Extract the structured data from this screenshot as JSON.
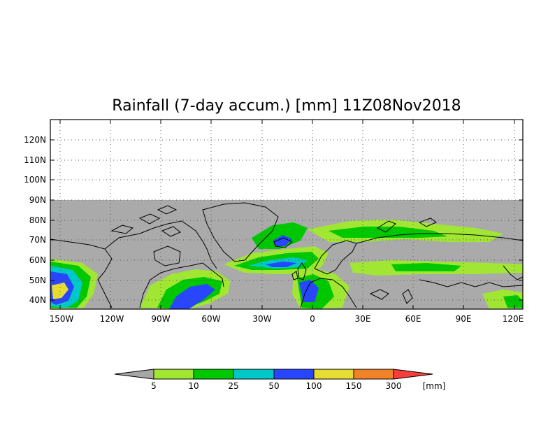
{
  "title": "Rainfall (7-day accum.) [mm] 11Z08Nov2018",
  "map": {
    "lat_labels": [
      "120N",
      "110N",
      "100N",
      "90N",
      "80N",
      "70N",
      "60N",
      "50N",
      "40N"
    ],
    "lon_labels": [
      "150W",
      "120W",
      "90W",
      "60W",
      "30W",
      "0",
      "30E",
      "60E",
      "90E",
      "120E"
    ],
    "lat_range": [
      35,
      130
    ],
    "lon_range": [
      -155,
      125
    ],
    "data_lat_max": 90,
    "grid": true
  },
  "colorbar": {
    "levels": [
      "5",
      "10",
      "25",
      "50",
      "100",
      "150",
      "300"
    ],
    "unit": "[mm]",
    "colors": [
      "#a6a6a6",
      "#a0e632",
      "#00c800",
      "#00c8c8",
      "#2846ff",
      "#e6dc32",
      "#f08228",
      "#fa3c3c"
    ]
  },
  "palette": {
    "no_data": "#aaaaaa",
    "coast": "#000000"
  }
}
